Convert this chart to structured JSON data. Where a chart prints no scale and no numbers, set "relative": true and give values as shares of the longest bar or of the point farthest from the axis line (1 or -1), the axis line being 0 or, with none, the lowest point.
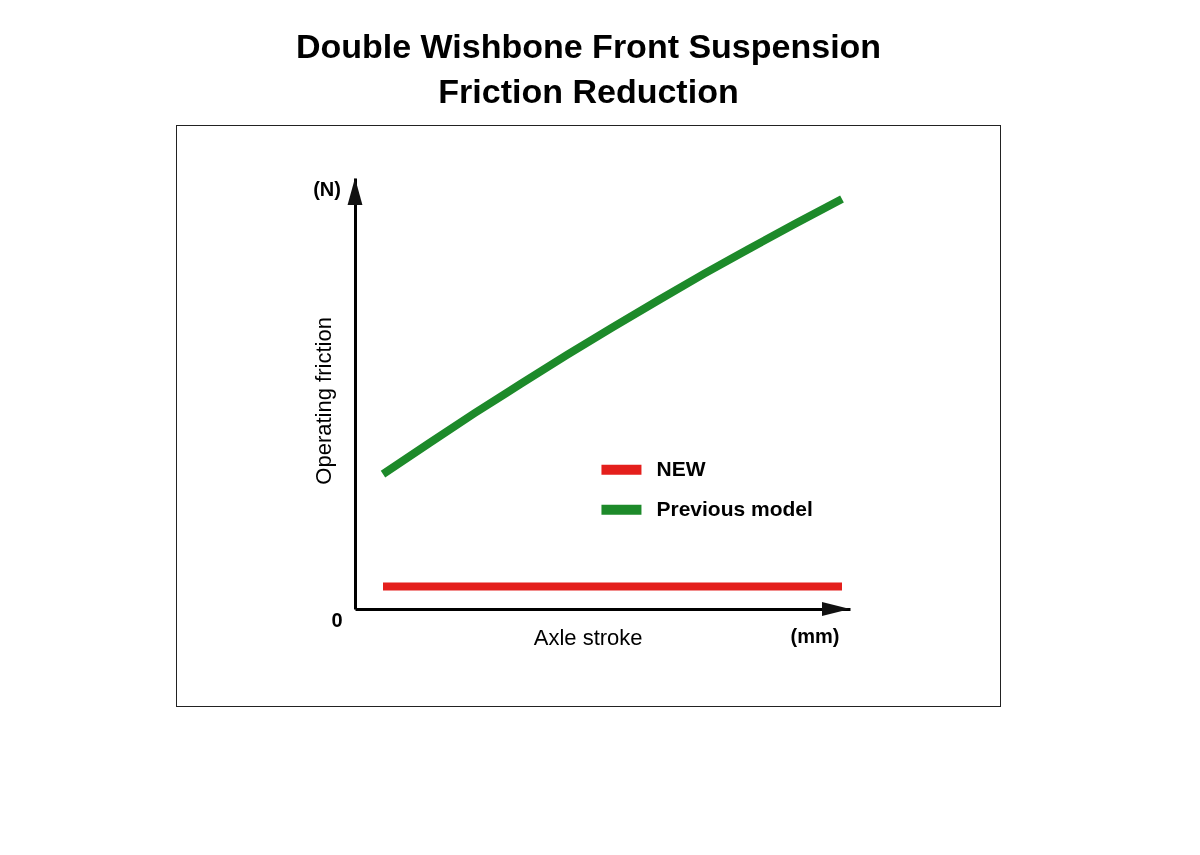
{
  "chart_data": {
    "type": "line",
    "title": "Double Wishbone Front Suspension Friction Reduction",
    "xlabel": "Axle stroke",
    "ylabel": "Operating friction",
    "annotations": [
      "(N)",
      "(mm)",
      "0"
    ],
    "categories": [
      null,
      null,
      null,
      null,
      null,
      null,
      null,
      null,
      null,
      null,
      null
    ],
    "relative": true,
    "series": [
      {
        "name": "NEW",
        "color": "#e41f1c",
        "values": [
          0.055,
          0.055,
          0.055,
          0.055,
          0.055,
          0.055,
          0.055,
          0.055,
          0.055,
          0.055,
          0.055
        ]
      },
      {
        "name": "Previous model",
        "color": "#1d8a2a",
        "values": [
          0.329,
          0.404,
          0.478,
          0.549,
          0.619,
          0.687,
          0.753,
          0.818,
          0.88,
          0.941,
          1.0
        ]
      }
    ],
    "legend": "bottom right",
    "grid": false,
    "tick_labels": false
  }
}
